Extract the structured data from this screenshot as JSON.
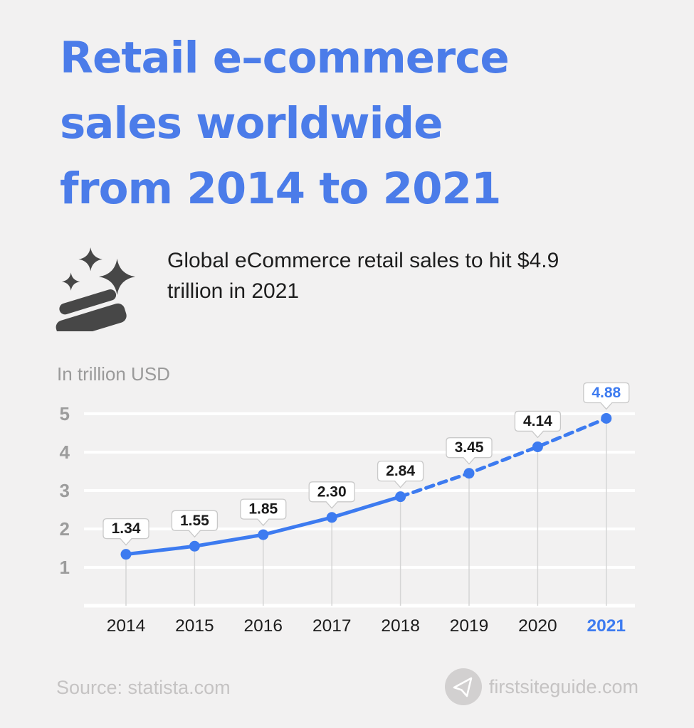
{
  "title": {
    "lines": [
      "Retail e–commerce",
      "sales worldwide",
      "from 2014 to 2021"
    ],
    "color": "#4b7ce9"
  },
  "subtitle": {
    "icon": "sparkling-credit-card-icon",
    "text": "Global eCommerce retail sales to hit $4.9 trillion in 2021",
    "lines": [
      "Global eCommerce retail sales to hit $4.9",
      "trillion in 2021"
    ]
  },
  "chart_data": {
    "type": "line",
    "title": "Retail e-commerce sales worldwide from 2014 to 2021",
    "unit_label": "In trillion USD",
    "categories": [
      "2014",
      "2015",
      "2016",
      "2017",
      "2018",
      "2019",
      "2020",
      "2021"
    ],
    "values": [
      1.34,
      1.55,
      1.85,
      2.3,
      2.84,
      3.45,
      4.14,
      4.88
    ],
    "value_labels": [
      "1.34",
      "1.55",
      "1.85",
      "2.30",
      "2.84",
      "3.45",
      "4.14",
      "4.88"
    ],
    "solid_until_index": 4,
    "dashed_note": "values after 2018 are forecast, drawn dashed",
    "yticks": [
      1,
      2,
      3,
      4,
      5
    ],
    "ylim": [
      0,
      5.5
    ],
    "grid": true,
    "legend": "none",
    "highlight_last": true,
    "colors": {
      "line": "#3d7bf0",
      "point": "#3d7bf0",
      "grid": "#ffffff",
      "axis_text": "#9c9c9c",
      "category_text": "#1c1c1c",
      "highlight_text": "#3d7bf0",
      "callout_bg": "#ffffff",
      "callout_border": "#c9c9c9",
      "callout_text": "#1b1b1b",
      "drop_line": "#d5d5d5"
    }
  },
  "footer": {
    "source": "Source: statista.com",
    "brand": "firstsiteguide.com",
    "logo": "paper-plane-icon"
  }
}
